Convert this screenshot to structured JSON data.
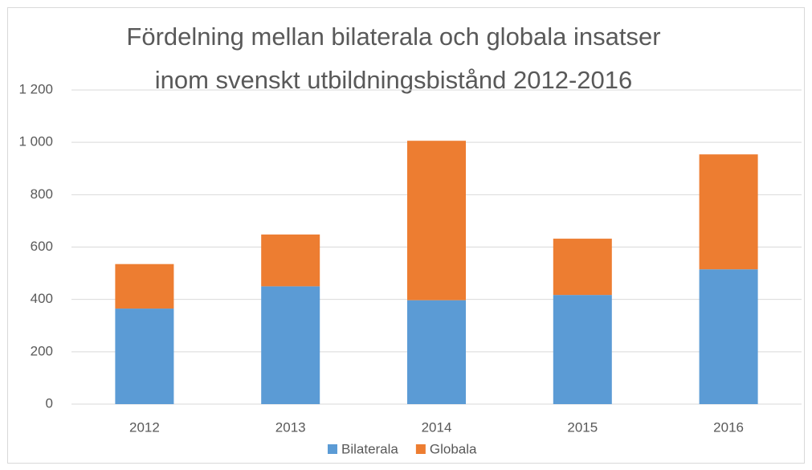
{
  "chart_data": {
    "type": "stacked_bar",
    "title": [
      "Fördelning mellan bilaterala och globala insatser",
      "inom svenskt utbildningsbistånd 2012-2016"
    ],
    "categories": [
      "2012",
      "2013",
      "2014",
      "2015",
      "2016"
    ],
    "series": [
      {
        "name": "Bilaterala",
        "color": "#5b9bd5",
        "values": [
          365,
          450,
          397,
          417,
          515
        ]
      },
      {
        "name": "Globala",
        "color": "#ed7d31",
        "values": [
          170,
          198,
          609,
          215,
          439
        ]
      }
    ],
    "ylim": [
      0,
      1200
    ],
    "yticks": [
      0,
      200,
      400,
      600,
      800,
      {
        "value": 1000,
        "label": "1 000"
      },
      {
        "value": 1200,
        "label": "1 200"
      }
    ],
    "grid": true,
    "legend": "bottom"
  }
}
